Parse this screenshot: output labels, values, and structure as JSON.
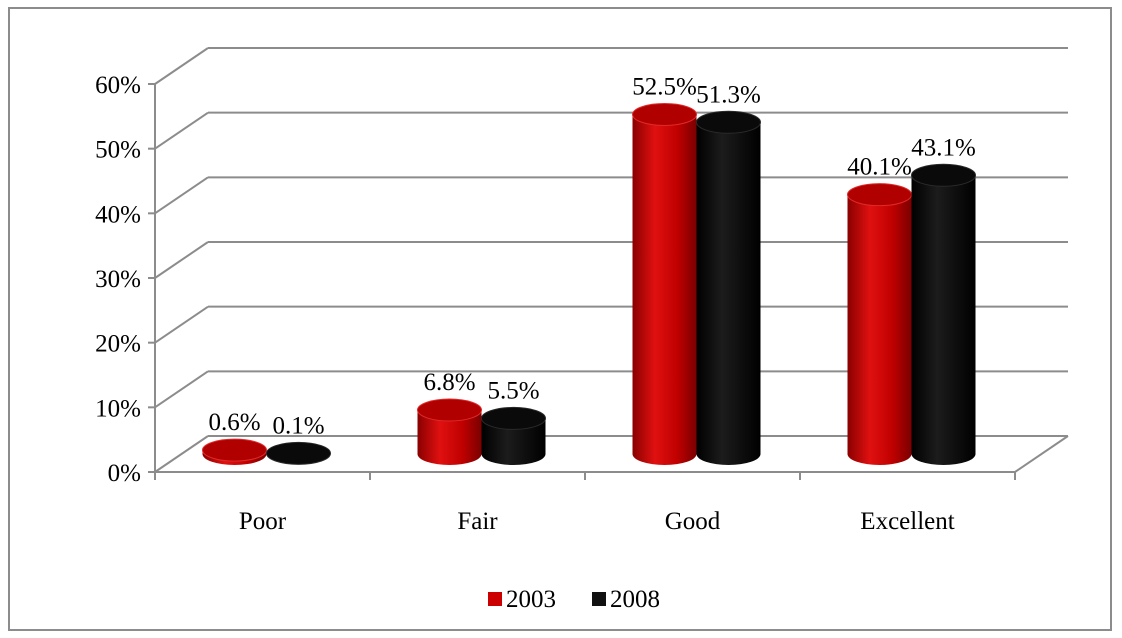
{
  "chart_data": {
    "type": "bar",
    "style": "3d-cylinder",
    "title": "",
    "xlabel": "",
    "ylabel": "",
    "categories": [
      "Poor",
      "Fair",
      "Good",
      "Excellent"
    ],
    "series": [
      {
        "name": "2003",
        "color": "#cc0000",
        "values": [
          0.6,
          6.8,
          52.5,
          40.1
        ],
        "labels": [
          "0.6%",
          "6.8%",
          "52.5%",
          "40.1%"
        ]
      },
      {
        "name": "2008",
        "color": "#111111",
        "values": [
          0.1,
          5.5,
          51.3,
          43.1
        ],
        "labels": [
          "0.1%",
          "5.5%",
          "51.3%",
          "43.1%"
        ]
      }
    ],
    "ylim": [
      0,
      60
    ],
    "yticks": [
      0,
      10,
      20,
      30,
      40,
      50,
      60
    ],
    "ytick_labels": [
      "0%",
      "10%",
      "20%",
      "30%",
      "40%",
      "50%",
      "60%"
    ],
    "grid": true,
    "legend_position": "bottom"
  }
}
